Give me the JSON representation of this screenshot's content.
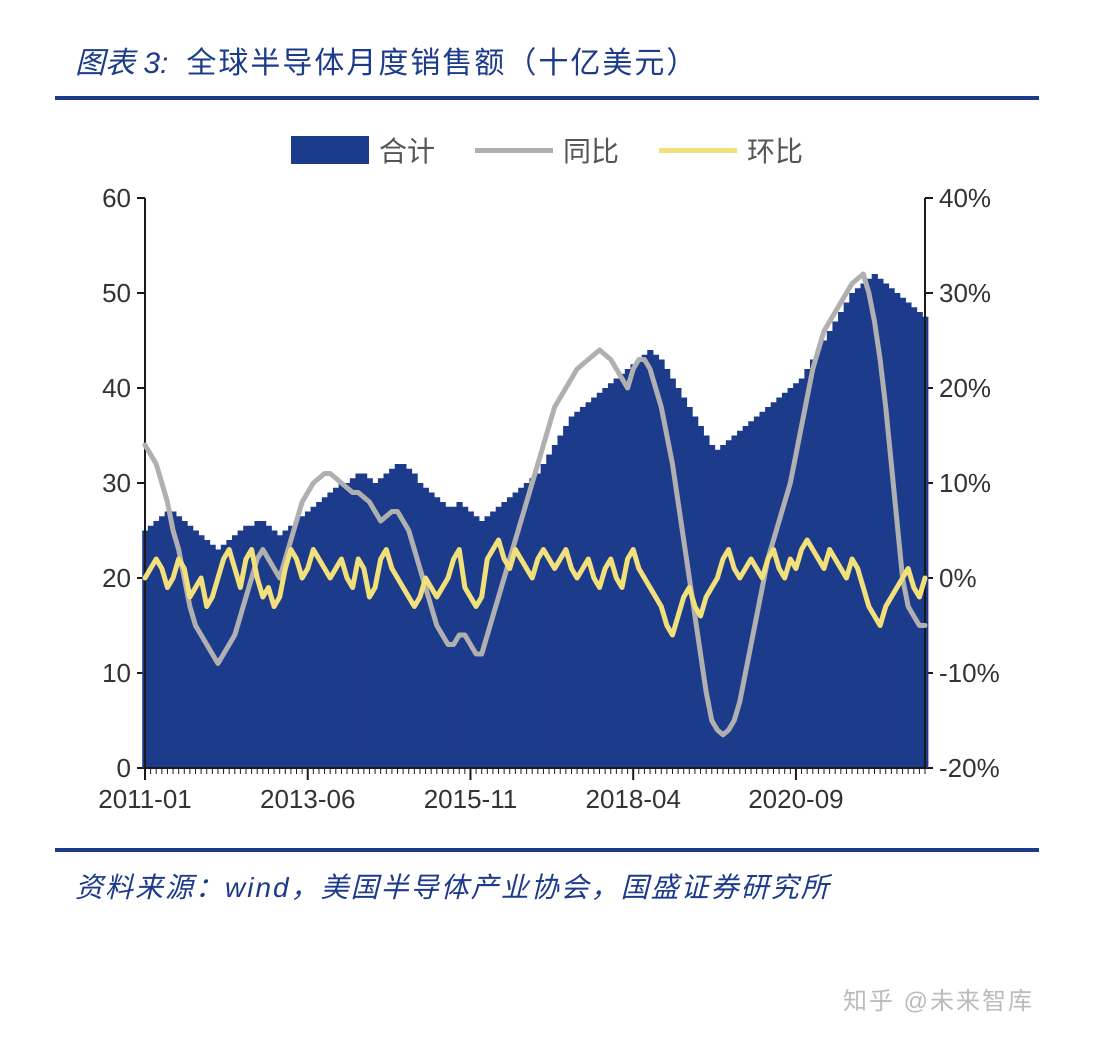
{
  "header": {
    "figure_label": "图表 3:",
    "title": "全球半导体月度销售额（十亿美元）"
  },
  "legend": {
    "total": "合计",
    "yoy": "同比",
    "mom": "环比"
  },
  "source": "资料来源：wind，美国半导体产业协会，国盛证券研究所",
  "watermark": "知乎 @未来智库",
  "chart": {
    "type": "bar+line-dual-axis",
    "background_color": "#ffffff",
    "grid_color": "#cccccc",
    "axis_color": "#1a1a1a",
    "tick_fontsize": 26,
    "tick_color": "#333333",
    "legend_fontsize": 28,
    "title_fontsize": 30,
    "accent_color": "#1d3b8b",
    "left_axis": {
      "min": 0,
      "max": 60,
      "step": 10,
      "unit": ""
    },
    "right_axis": {
      "min": -20,
      "max": 40,
      "step": 10,
      "unit": "%"
    },
    "x_ticks": [
      "2011-01",
      "2013-06",
      "2015-11",
      "2018-04",
      "2020-09"
    ],
    "n_points": 140,
    "series": {
      "total": {
        "type": "bar",
        "color": "#1d3b8b",
        "axis": "left",
        "values": [
          25,
          25.5,
          26,
          26.5,
          27,
          27,
          26.5,
          26,
          25.5,
          25,
          24.5,
          24,
          23.5,
          23,
          23.5,
          24,
          24.5,
          25,
          25.5,
          25.5,
          26,
          26,
          25.5,
          25,
          24.5,
          25,
          25.5,
          26,
          26.5,
          27,
          27.5,
          28,
          28.5,
          29,
          29.5,
          30,
          30,
          30.5,
          31,
          31,
          30.5,
          30,
          30.5,
          31,
          31.5,
          32,
          32,
          31.5,
          31,
          30,
          29.5,
          29,
          28.5,
          28,
          27.5,
          27.5,
          28,
          27.5,
          27,
          26.5,
          26,
          26.5,
          27,
          27.5,
          28,
          28.5,
          29,
          29.5,
          30,
          30.5,
          31,
          32,
          33,
          34,
          35,
          36,
          37,
          37.5,
          38,
          38.5,
          39,
          39.5,
          40,
          40.5,
          41,
          41.5,
          42,
          42.5,
          43,
          43.5,
          44,
          43.5,
          43,
          42,
          41,
          40,
          39,
          38,
          37,
          36,
          35,
          34,
          33.5,
          34,
          34.5,
          35,
          35.5,
          36,
          36.5,
          37,
          37.5,
          38,
          38.5,
          39,
          39.5,
          40,
          40.5,
          41,
          42,
          43,
          44,
          45,
          46,
          47,
          48,
          49,
          50,
          50.5,
          51,
          51.5,
          52,
          51.5,
          51,
          50.5,
          50,
          49.5,
          49,
          48.5,
          48,
          47.5
        ]
      },
      "yoy": {
        "type": "line",
        "color": "#b0b0b0",
        "width": 5,
        "axis": "right",
        "values": [
          14,
          13,
          12,
          10,
          8,
          5,
          3,
          0,
          -3,
          -5,
          -6,
          -7,
          -8,
          -9,
          -8,
          -7,
          -6,
          -4,
          -2,
          0,
          2,
          3,
          2,
          1,
          0,
          2,
          4,
          6,
          8,
          9,
          10,
          10.5,
          11,
          11,
          10.5,
          10,
          9.5,
          9,
          9,
          8.5,
          8,
          7,
          6,
          6.5,
          7,
          7,
          6,
          5,
          3,
          1,
          -1,
          -3,
          -5,
          -6,
          -7,
          -7,
          -6,
          -6,
          -7,
          -8,
          -8,
          -6,
          -4,
          -2,
          0,
          2,
          4,
          6,
          8,
          10,
          12,
          14,
          16,
          18,
          19,
          20,
          21,
          22,
          22.5,
          23,
          23.5,
          24,
          23.5,
          23,
          22,
          21,
          20,
          22,
          23,
          23,
          22,
          20,
          18,
          15,
          12,
          8,
          4,
          0,
          -4,
          -8,
          -12,
          -15,
          -16,
          -16.5,
          -16,
          -15,
          -13,
          -10,
          -7,
          -4,
          -1,
          2,
          4,
          6,
          8,
          10,
          13,
          16,
          19,
          22,
          24,
          26,
          27,
          28,
          29,
          30,
          31,
          31.5,
          32,
          30,
          27,
          23,
          18,
          12,
          6,
          0,
          -3,
          -4,
          -5,
          -5
        ]
      },
      "mom": {
        "type": "line",
        "color": "#f2e07a",
        "width": 5,
        "axis": "right",
        "values": [
          0,
          1,
          2,
          1,
          -1,
          0,
          2,
          1,
          -2,
          -1,
          0,
          -3,
          -2,
          0,
          2,
          3,
          1,
          -1,
          2,
          3,
          0,
          -2,
          -1,
          -3,
          -2,
          1,
          3,
          2,
          0,
          1,
          3,
          2,
          1,
          0,
          1,
          2,
          0,
          -1,
          2,
          1,
          -2,
          -1,
          2,
          3,
          1,
          0,
          -1,
          -2,
          -3,
          -2,
          0,
          -1,
          -2,
          -1,
          0,
          2,
          3,
          -1,
          -2,
          -3,
          -2,
          2,
          3,
          4,
          2,
          1,
          3,
          2,
          1,
          0,
          2,
          3,
          2,
          1,
          2,
          3,
          1,
          0,
          1,
          2,
          0,
          -1,
          1,
          2,
          0,
          -1,
          2,
          3,
          1,
          0,
          -1,
          -2,
          -3,
          -5,
          -6,
          -4,
          -2,
          -1,
          -3,
          -4,
          -2,
          -1,
          0,
          2,
          3,
          1,
          0,
          1,
          2,
          1,
          0,
          2,
          3,
          1,
          0,
          2,
          1,
          3,
          4,
          3,
          2,
          1,
          3,
          2,
          1,
          0,
          2,
          1,
          -1,
          -3,
          -4,
          -5,
          -3,
          -2,
          -1,
          0,
          1,
          -1,
          -2,
          0
        ]
      }
    }
  }
}
